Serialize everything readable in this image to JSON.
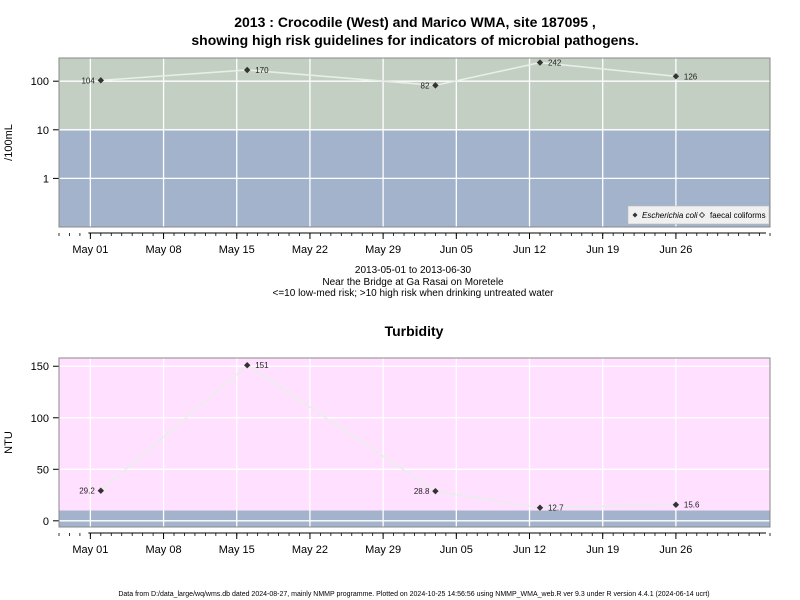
{
  "chart_data": [
    {
      "type": "line",
      "title_line1": "2013 : Crocodile (West) and Marico WMA, site 187095 ,",
      "title_line2": "showing high risk guidelines for indicators of microbial pathogens.",
      "ylabel": "/100mL",
      "yscale": "log",
      "ytick_labels": [
        "1",
        "10",
        "100"
      ],
      "ytick_values": [
        1,
        10,
        100
      ],
      "xtick_labels": [
        "May 01",
        "May 08",
        "May 15",
        "May 22",
        "May 29",
        "Jun 05",
        "Jun 12",
        "Jun 19",
        "Jun 26"
      ],
      "xtick_dates": [
        "2013-05-01",
        "2013-05-08",
        "2013-05-15",
        "2013-05-22",
        "2013-05-29",
        "2013-06-05",
        "2013-06-12",
        "2013-06-19",
        "2013-06-26"
      ],
      "xlim": [
        "2013-04-28",
        "2013-07-05"
      ],
      "ylim": [
        0.1,
        300
      ],
      "bands": [
        {
          "from": 0.1,
          "to": 10,
          "color": "#a3b3cc"
        },
        {
          "from": 10,
          "to": 300,
          "color": "#c3cfc3"
        }
      ],
      "series": [
        {
          "name": "Escherichia coli",
          "line_color": "#e8eee8",
          "marker_color": "#333333",
          "x": [
            "2013-05-02",
            "2013-05-16",
            "2013-06-03",
            "2013-06-13",
            "2013-06-26"
          ],
          "y": [
            104,
            170,
            82,
            242,
            126
          ],
          "labels": [
            "104",
            "170",
            "82",
            "242",
            "126"
          ]
        }
      ],
      "legend": {
        "position": "bottom-right",
        "items": [
          "Escherichia coli",
          "faecal coliforms"
        ]
      },
      "grid": true
    },
    {
      "type": "line",
      "title": "Turbidity",
      "ylabel": "NTU",
      "yscale": "linear",
      "ytick_labels": [
        "0",
        "50",
        "100",
        "150"
      ],
      "ytick_values": [
        0,
        50,
        100,
        150
      ],
      "xtick_labels": [
        "May 01",
        "May 08",
        "May 15",
        "May 22",
        "May 29",
        "Jun 05",
        "Jun 12",
        "Jun 19",
        "Jun 26"
      ],
      "xtick_dates": [
        "2013-05-01",
        "2013-05-08",
        "2013-05-15",
        "2013-05-22",
        "2013-05-29",
        "2013-06-05",
        "2013-06-12",
        "2013-06-19",
        "2013-06-26"
      ],
      "xlim": [
        "2013-04-28",
        "2013-07-05"
      ],
      "ylim": [
        -6,
        158
      ],
      "bands": [
        {
          "from": -6,
          "to": 10,
          "color": "#a3b3cc"
        },
        {
          "from": 10,
          "to": 158,
          "color": "#ffe0ff"
        }
      ],
      "series": [
        {
          "name": "",
          "line_color": "#e8eee8",
          "marker_color": "#333333",
          "x": [
            "2013-05-02",
            "2013-05-16",
            "2013-06-03",
            "2013-06-13",
            "2013-06-26"
          ],
          "y": [
            29.2,
            151,
            28.8,
            12.7,
            15.6
          ],
          "labels": [
            "29.2",
            "151",
            "28.8",
            "12.7",
            "15.6"
          ]
        }
      ],
      "grid": true
    }
  ],
  "caption": {
    "date_range": "2013-05-01 to 2013-06-30",
    "location": "Near the Bridge at Ga Rasai on Moretele",
    "risk_note": "<=10 low-med risk; >10 high risk when drinking untreated water"
  },
  "footer": "Data from D:/data_large/wq/wms.db dated 2024-08-27, mainly NMMP programme. Plotted on 2024-10-25 14:56:56 using NMMP_WMA_web.R ver 9.3 under R version 4.4.1 (2024-06-14 ucrt)"
}
